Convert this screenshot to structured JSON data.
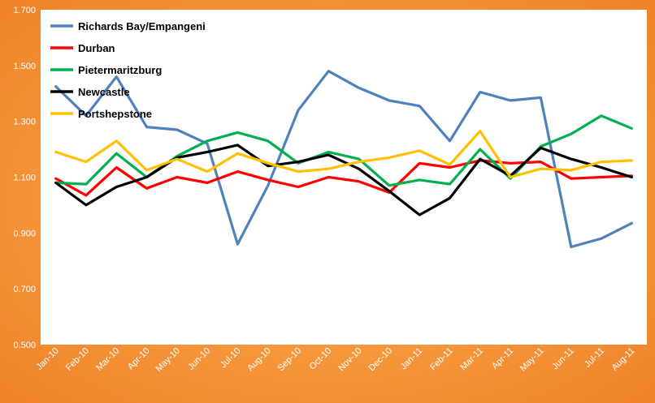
{
  "chart_data": {
    "type": "line",
    "title": "",
    "xlabel": "",
    "ylabel": "",
    "ylim": [
      0.5,
      1.7
    ],
    "yticks": [
      "0.500",
      "0.700",
      "0.900",
      "1.100",
      "1.300",
      "1.500",
      "1.700"
    ],
    "grid": false,
    "legend_position": "top-left",
    "categories": [
      "Jan-10",
      "Feb-10",
      "Mar-10",
      "Apr-10",
      "May-10",
      "Jun-10",
      "Jul-10",
      "Aug-10",
      "Sep-10",
      "Oct-10",
      "Nov-10",
      "Dec-10",
      "Jan-11",
      "Feb-11",
      "Mar-11",
      "Apr-11",
      "May-11",
      "Jun-11",
      "Jul-11",
      "Aug-11"
    ],
    "series": [
      {
        "name": "Richards Bay/Empangeni",
        "color": "#4f81bd",
        "values": [
          1.425,
          1.32,
          1.46,
          1.28,
          1.27,
          1.22,
          0.86,
          1.07,
          1.34,
          1.48,
          1.42,
          1.375,
          1.355,
          1.23,
          1.405,
          1.375,
          1.385,
          0.85,
          0.88,
          0.935
        ]
      },
      {
        "name": "Durban",
        "color": "#ff0000",
        "values": [
          1.095,
          1.035,
          1.135,
          1.06,
          1.1,
          1.08,
          1.12,
          1.09,
          1.065,
          1.1,
          1.085,
          1.045,
          1.15,
          1.135,
          1.16,
          1.15,
          1.155,
          1.095,
          1.1,
          1.105
        ]
      },
      {
        "name": "Pietermaritzburg",
        "color": "#00b050",
        "values": [
          1.08,
          1.075,
          1.185,
          1.1,
          1.175,
          1.23,
          1.26,
          1.23,
          1.15,
          1.19,
          1.165,
          1.07,
          1.09,
          1.075,
          1.2,
          1.095,
          1.21,
          1.255,
          1.32,
          1.275
        ]
      },
      {
        "name": "Newcastle",
        "color": "#000000",
        "values": [
          1.08,
          1.0,
          1.065,
          1.1,
          1.17,
          1.19,
          1.215,
          1.14,
          1.155,
          1.18,
          1.13,
          1.05,
          0.965,
          1.025,
          1.165,
          1.105,
          1.205,
          1.165,
          1.135,
          1.1
        ]
      },
      {
        "name": "Portshepstone",
        "color": "#ffc000",
        "values": [
          1.19,
          1.155,
          1.23,
          1.125,
          1.165,
          1.12,
          1.185,
          1.15,
          1.12,
          1.13,
          1.155,
          1.17,
          1.195,
          1.145,
          1.265,
          1.1,
          1.13,
          1.125,
          1.155,
          1.16
        ]
      }
    ]
  }
}
